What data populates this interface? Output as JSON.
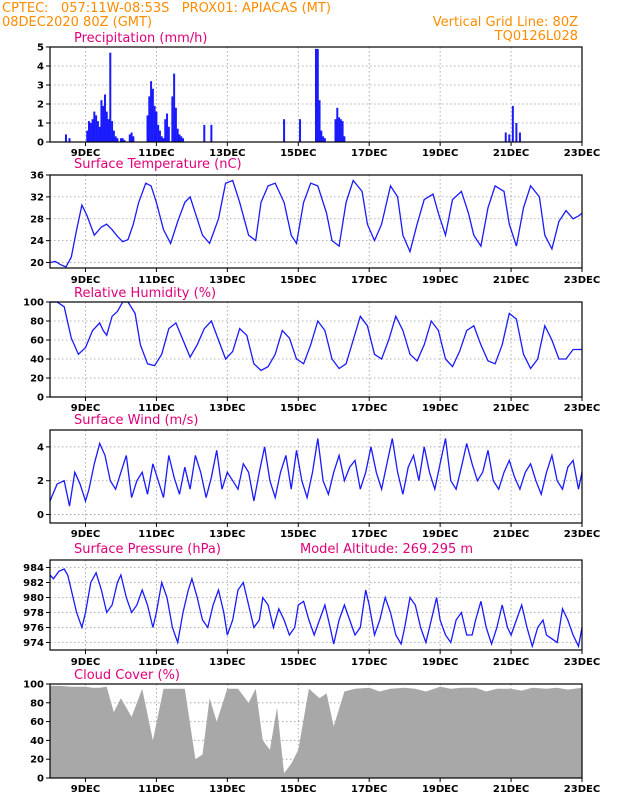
{
  "header": {
    "line1_left": "CPTEC:   057:11W-08:53S   PROX01: APIACAS (MT)",
    "line2_left": "08DEC2020 80Z (GMT)",
    "line2_right": "Vertical Grid Line: 80Z",
    "line3_right": "TQ0126L028"
  },
  "colors": {
    "header": "#ff8c00",
    "title": "#e0007a",
    "line": "#1a1aff",
    "cloud": "#a8a8a8"
  },
  "x_tick_labels": [
    "9DEC",
    "11DEC",
    "13DEC",
    "15DEC",
    "17DEC",
    "19DEC",
    "21DEC",
    "23DEC"
  ],
  "chart_data": [
    {
      "id": "precip",
      "type": "bar",
      "title": "Precipitation (mm/h)",
      "x_unit": "days since 8DEC 00Z",
      "ylim": [
        0,
        5
      ],
      "yticks": [
        0,
        1,
        2,
        3,
        4,
        5
      ],
      "x": [
        0.45,
        0.55,
        1.05,
        1.1,
        1.15,
        1.2,
        1.25,
        1.3,
        1.35,
        1.4,
        1.45,
        1.5,
        1.55,
        1.6,
        1.65,
        1.7,
        1.75,
        1.8,
        1.85,
        1.9,
        2.0,
        2.05,
        2.1,
        2.25,
        2.3,
        2.35,
        2.75,
        2.8,
        2.85,
        2.9,
        2.95,
        3.0,
        3.05,
        3.1,
        3.15,
        3.2,
        3.25,
        3.3,
        3.35,
        3.45,
        3.5,
        3.55,
        3.6,
        3.65,
        3.7,
        3.75,
        4.35,
        4.55,
        6.6,
        7.05,
        7.5,
        7.55,
        7.6,
        7.65,
        7.7,
        7.75,
        8.05,
        8.1,
        8.15,
        8.2,
        8.25,
        8.3,
        12.85,
        12.95,
        13.05,
        13.15,
        13.25
      ],
      "values": [
        0.4,
        0.2,
        0.6,
        1.1,
        1.0,
        1.2,
        1.6,
        1.4,
        1.1,
        0.8,
        2.2,
        1.9,
        2.5,
        1.6,
        1.2,
        4.7,
        1.1,
        0.6,
        0.3,
        0.2,
        0.2,
        0.2,
        0.1,
        0.4,
        0.5,
        0.3,
        1.4,
        2.4,
        3.2,
        2.8,
        1.9,
        1.6,
        0.9,
        0.6,
        0.3,
        0.2,
        1.2,
        1.5,
        0.8,
        2.4,
        3.6,
        1.8,
        0.7,
        0.4,
        0.3,
        0.2,
        0.9,
        0.9,
        1.2,
        1.2,
        4.9,
        4.9,
        2.2,
        0.6,
        0.3,
        0.2,
        1.2,
        1.8,
        1.3,
        1.2,
        1.1,
        0.3,
        0.5,
        0.4,
        1.9,
        1.0,
        0.5
      ]
    },
    {
      "id": "temp",
      "type": "line",
      "title": "Surface Temperature (nC)",
      "x_unit": "days since 8DEC 00Z",
      "ylim": [
        19,
        36
      ],
      "yticks": [
        20,
        24,
        28,
        32,
        36
      ],
      "x": [
        0,
        0.15,
        0.3,
        0.45,
        0.6,
        0.75,
        0.9,
        1.05,
        1.25,
        1.45,
        1.6,
        1.75,
        1.9,
        2.05,
        2.2,
        2.35,
        2.5,
        2.7,
        2.85,
        3.0,
        3.2,
        3.4,
        3.6,
        3.8,
        3.95,
        4.1,
        4.3,
        4.5,
        4.75,
        4.95,
        5.15,
        5.35,
        5.6,
        5.8,
        5.95,
        6.15,
        6.35,
        6.6,
        6.8,
        6.95,
        7.15,
        7.35,
        7.55,
        7.8,
        7.95,
        8.15,
        8.35,
        8.55,
        8.8,
        8.95,
        9.15,
        9.35,
        9.6,
        9.8,
        9.95,
        10.15,
        10.35,
        10.55,
        10.8,
        10.95,
        11.15,
        11.35,
        11.6,
        11.8,
        11.95,
        12.15,
        12.35,
        12.55,
        12.8,
        12.95,
        13.15,
        13.35,
        13.55,
        13.8,
        13.95,
        14.15,
        14.35,
        14.55,
        14.75,
        14.9,
        15.0
      ],
      "values": [
        20,
        20.2,
        19.6,
        19.2,
        21,
        26,
        30.5,
        28.5,
        25,
        26.5,
        27,
        26,
        24.8,
        23.8,
        24.2,
        27,
        31,
        34.5,
        34,
        31,
        26,
        23.5,
        27.5,
        31,
        32,
        29,
        25,
        23.5,
        28,
        34.5,
        35,
        31,
        25,
        24,
        31,
        34,
        34.5,
        31,
        25,
        23.5,
        31,
        34.5,
        34,
        29,
        24,
        23,
        31,
        35,
        33,
        27,
        24,
        27,
        34,
        32,
        25,
        22,
        27,
        31.5,
        32.5,
        29,
        25,
        31.5,
        33,
        29,
        25,
        23,
        30,
        34,
        33,
        27,
        23,
        30,
        34,
        32,
        25,
        22.5,
        27.5,
        29.5,
        28,
        28.5,
        29
      ]
    },
    {
      "id": "rh",
      "type": "line",
      "title": "Relative Humidity (%)",
      "x_unit": "days since 8DEC 00Z",
      "ylim": [
        0,
        100
      ],
      "yticks": [
        0,
        20,
        40,
        60,
        80,
        100
      ],
      "x": [
        0,
        0.2,
        0.4,
        0.6,
        0.8,
        1.0,
        1.2,
        1.4,
        1.5,
        1.6,
        1.75,
        1.9,
        2.05,
        2.2,
        2.4,
        2.55,
        2.75,
        2.95,
        3.15,
        3.35,
        3.55,
        3.75,
        3.95,
        4.15,
        4.35,
        4.55,
        4.75,
        4.95,
        5.15,
        5.35,
        5.55,
        5.75,
        5.95,
        6.15,
        6.35,
        6.55,
        6.75,
        6.95,
        7.15,
        7.35,
        7.55,
        7.75,
        7.95,
        8.15,
        8.35,
        8.55,
        8.75,
        8.95,
        9.15,
        9.35,
        9.55,
        9.75,
        9.95,
        10.15,
        10.35,
        10.55,
        10.75,
        10.95,
        11.15,
        11.35,
        11.55,
        11.75,
        11.95,
        12.15,
        12.35,
        12.55,
        12.75,
        12.95,
        13.15,
        13.35,
        13.55,
        13.75,
        13.95,
        14.15,
        14.35,
        14.55,
        14.75,
        15.0
      ],
      "values": [
        100,
        100,
        95,
        62,
        45,
        52,
        70,
        78,
        70,
        65,
        85,
        90,
        100,
        100,
        88,
        55,
        35,
        33,
        45,
        72,
        78,
        60,
        42,
        55,
        72,
        80,
        60,
        40,
        48,
        72,
        65,
        35,
        28,
        32,
        45,
        70,
        62,
        40,
        35,
        55,
        80,
        70,
        40,
        30,
        35,
        60,
        85,
        75,
        45,
        40,
        60,
        85,
        70,
        45,
        38,
        55,
        80,
        70,
        40,
        32,
        48,
        70,
        75,
        55,
        38,
        35,
        55,
        88,
        82,
        45,
        30,
        40,
        75,
        60,
        40,
        40,
        50,
        50
      ]
    },
    {
      "id": "wind",
      "type": "line",
      "title": "Surface Wind (m/s)",
      "x_unit": "days since 8DEC 00Z",
      "ylim": [
        -0.5,
        5
      ],
      "yticks": [
        0,
        2,
        4
      ],
      "x": [
        0,
        0.2,
        0.4,
        0.55,
        0.7,
        0.85,
        1.0,
        1.1,
        1.25,
        1.4,
        1.55,
        1.7,
        1.85,
        2.0,
        2.15,
        2.3,
        2.45,
        2.6,
        2.75,
        2.9,
        3.05,
        3.2,
        3.35,
        3.5,
        3.65,
        3.8,
        3.95,
        4.1,
        4.25,
        4.4,
        4.55,
        4.7,
        4.85,
        5.0,
        5.15,
        5.3,
        5.45,
        5.6,
        5.75,
        5.9,
        6.05,
        6.2,
        6.35,
        6.5,
        6.65,
        6.8,
        6.95,
        7.1,
        7.25,
        7.4,
        7.55,
        7.7,
        7.85,
        8.0,
        8.15,
        8.3,
        8.45,
        8.6,
        8.75,
        8.9,
        9.05,
        9.2,
        9.35,
        9.5,
        9.65,
        9.8,
        9.95,
        10.1,
        10.25,
        10.4,
        10.55,
        10.7,
        10.85,
        11.0,
        11.15,
        11.3,
        11.45,
        11.6,
        11.75,
        11.9,
        12.05,
        12.2,
        12.35,
        12.5,
        12.65,
        12.8,
        12.95,
        13.1,
        13.25,
        13.4,
        13.55,
        13.7,
        13.85,
        14.0,
        14.15,
        14.3,
        14.45,
        14.6,
        14.75,
        14.9,
        15.0
      ],
      "values": [
        0.8,
        1.8,
        2.0,
        0.5,
        2.5,
        1.8,
        0.8,
        1.5,
        3.0,
        4.2,
        3.5,
        2.0,
        1.5,
        2.5,
        3.5,
        1.0,
        2.0,
        2.5,
        1.2,
        3.0,
        2.0,
        1.0,
        3.5,
        2.2,
        1.2,
        2.8,
        1.5,
        3.5,
        2.5,
        1.0,
        2.2,
        3.8,
        1.5,
        2.5,
        2.0,
        1.5,
        3.0,
        2.5,
        0.8,
        2.5,
        4.0,
        2.0,
        1.0,
        2.5,
        3.5,
        1.5,
        3.8,
        2.0,
        1.0,
        2.5,
        4.5,
        2.0,
        1.2,
        2.5,
        3.5,
        2.0,
        2.8,
        3.2,
        1.5,
        2.5,
        4.0,
        2.5,
        1.5,
        3.0,
        4.5,
        2.5,
        1.2,
        2.8,
        3.5,
        2.0,
        4.0,
        2.5,
        1.5,
        3.0,
        4.5,
        2.0,
        1.5,
        2.8,
        4.2,
        3.0,
        2.0,
        2.5,
        3.8,
        2.0,
        1.5,
        2.5,
        3.2,
        2.2,
        1.5,
        2.5,
        3.0,
        2.0,
        1.2,
        2.5,
        3.5,
        2.0,
        1.5,
        2.8,
        3.2,
        1.5,
        2.5
      ]
    },
    {
      "id": "pressure",
      "type": "line",
      "title": "Surface Pressure (hPa)",
      "subtitle": "Model Altitude: 269.295 m",
      "x_unit": "days since 8DEC 00Z",
      "ylim": [
        973,
        985
      ],
      "yticks": [
        974,
        976,
        978,
        980,
        982,
        984
      ],
      "x": [
        0,
        0.1,
        0.25,
        0.4,
        0.5,
        0.6,
        0.75,
        0.9,
        1.0,
        1.15,
        1.3,
        1.45,
        1.6,
        1.75,
        1.9,
        2.0,
        2.15,
        2.3,
        2.45,
        2.6,
        2.75,
        2.9,
        3.0,
        3.15,
        3.3,
        3.45,
        3.6,
        3.75,
        3.9,
        4.0,
        4.15,
        4.3,
        4.45,
        4.6,
        4.75,
        4.9,
        5.0,
        5.15,
        5.3,
        5.45,
        5.6,
        5.75,
        5.9,
        6.0,
        6.15,
        6.3,
        6.45,
        6.6,
        6.75,
        6.9,
        7.0,
        7.15,
        7.3,
        7.45,
        7.6,
        7.75,
        7.9,
        8.0,
        8.15,
        8.3,
        8.45,
        8.6,
        8.75,
        8.9,
        9.0,
        9.15,
        9.3,
        9.45,
        9.6,
        9.75,
        9.9,
        10.0,
        10.15,
        10.3,
        10.45,
        10.6,
        10.75,
        10.9,
        11.0,
        11.15,
        11.3,
        11.45,
        11.6,
        11.75,
        11.9,
        12.0,
        12.15,
        12.3,
        12.45,
        12.6,
        12.75,
        12.9,
        13.0,
        13.15,
        13.3,
        13.45,
        13.6,
        13.75,
        13.9,
        14.0,
        14.15,
        14.3,
        14.45,
        14.6,
        14.75,
        14.9,
        15.0
      ],
      "values": [
        983,
        982.5,
        983.5,
        983.8,
        983,
        981,
        978,
        976,
        978,
        982,
        983.3,
        981,
        978,
        979,
        982,
        983,
        980,
        978,
        979,
        981,
        979,
        976,
        978,
        982,
        980,
        976,
        974,
        978,
        981,
        982.5,
        980,
        977,
        976,
        979,
        981,
        978,
        975,
        977,
        981,
        982,
        979,
        976,
        977,
        980,
        979,
        976,
        978.5,
        977,
        975,
        976,
        979,
        979.5,
        977,
        975,
        977,
        979,
        976,
        973.8,
        977,
        979,
        977,
        975,
        976,
        981,
        979,
        975,
        977,
        980,
        978,
        975,
        973.8,
        976,
        980,
        979,
        976,
        974,
        977,
        980,
        977,
        975,
        974,
        977,
        978,
        975,
        975,
        977,
        979.5,
        976,
        973.8,
        976,
        979,
        976,
        975,
        977,
        979,
        976,
        973.5,
        976,
        977,
        975,
        974.5,
        974,
        978.5,
        977,
        975,
        973.5,
        976
      ]
    },
    {
      "id": "cloud",
      "type": "area",
      "title": "Cloud Cover (%)",
      "x_unit": "days since 8DEC 00Z",
      "ylim": [
        0,
        100
      ],
      "yticks": [
        0,
        20,
        40,
        60,
        80,
        100
      ],
      "x": [
        0,
        0.3,
        0.6,
        0.8,
        1.0,
        1.2,
        1.4,
        1.6,
        1.8,
        2.0,
        2.3,
        2.6,
        2.9,
        3.2,
        3.5,
        3.8,
        4.1,
        4.3,
        4.5,
        4.7,
        5.0,
        5.3,
        5.6,
        5.8,
        6.0,
        6.2,
        6.4,
        6.6,
        6.8,
        7.0,
        7.3,
        7.6,
        7.8,
        8.0,
        8.3,
        8.6,
        9.0,
        9.3,
        9.6,
        10.0,
        10.3,
        10.6,
        11.0,
        11.3,
        11.6,
        12.0,
        12.3,
        12.6,
        13.0,
        13.3,
        13.6,
        14.0,
        14.3,
        14.6,
        15.0
      ],
      "values": [
        98,
        98,
        97,
        97,
        97,
        96,
        96,
        97,
        70,
        85,
        65,
        95,
        40,
        95,
        95,
        95,
        20,
        25,
        85,
        60,
        95,
        95,
        80,
        95,
        40,
        30,
        75,
        5,
        15,
        30,
        95,
        85,
        90,
        55,
        92,
        95,
        96,
        92,
        95,
        96,
        95,
        92,
        97,
        95,
        96,
        96,
        92,
        95,
        95,
        93,
        96,
        95,
        96,
        94,
        96
      ]
    }
  ]
}
